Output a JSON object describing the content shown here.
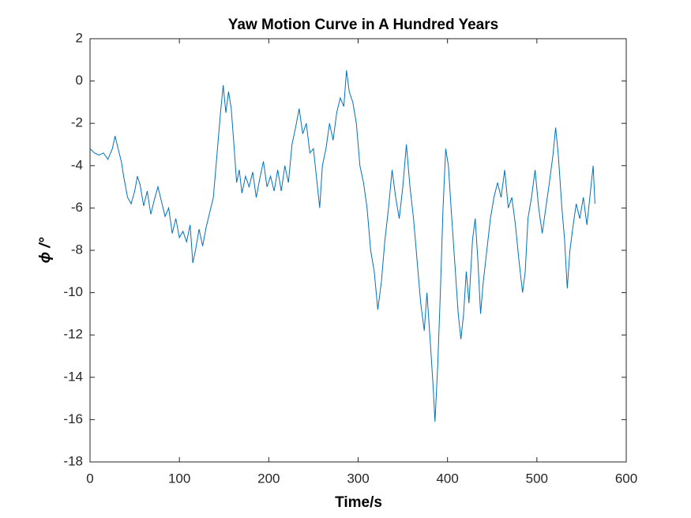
{
  "chart_data": {
    "type": "line",
    "title": "Yaw Motion Curve in A Hundred Years",
    "xlabel": "Time/s",
    "ylabel": "ϕ /°",
    "x": [
      0,
      5,
      10,
      15,
      20,
      25,
      28,
      32,
      35,
      38,
      42,
      46,
      50,
      53,
      56,
      60,
      64,
      68,
      72,
      76,
      80,
      84,
      88,
      92,
      96,
      100,
      104,
      108,
      112,
      115,
      118,
      122,
      126,
      130,
      134,
      138,
      142,
      146,
      149,
      152,
      155,
      158,
      161,
      164,
      167,
      170,
      174,
      178,
      182,
      186,
      190,
      194,
      198,
      202,
      206,
      210,
      214,
      218,
      222,
      226,
      230,
      234,
      238,
      242,
      246,
      250,
      254,
      257,
      260,
      264,
      268,
      272,
      276,
      280,
      284,
      287,
      290,
      294,
      298,
      302,
      306,
      310,
      314,
      318,
      322,
      326,
      330,
      334,
      338,
      342,
      346,
      350,
      354,
      358,
      362,
      366,
      370,
      374,
      377,
      381,
      384,
      386,
      389,
      392,
      395,
      398,
      401,
      404,
      408,
      412,
      415,
      418,
      421,
      424,
      428,
      431,
      434,
      437,
      440,
      444,
      448,
      452,
      456,
      460,
      464,
      468,
      472,
      476,
      480,
      484,
      487,
      490,
      494,
      498,
      502,
      506,
      510,
      514,
      518,
      521,
      524,
      528,
      531,
      534,
      537,
      540,
      544,
      548,
      552,
      556,
      560,
      563,
      565
    ],
    "series": [
      {
        "name": "yaw",
        "color": "#0072bd",
        "values": [
          -3.2,
          -3.4,
          -3.5,
          -3.4,
          -3.7,
          -3.2,
          -2.6,
          -3.3,
          -3.8,
          -4.6,
          -5.5,
          -5.8,
          -5.2,
          -4.5,
          -4.9,
          -5.9,
          -5.2,
          -6.3,
          -5.6,
          -5.0,
          -5.7,
          -6.4,
          -6.0,
          -7.2,
          -6.5,
          -7.4,
          -7.1,
          -7.6,
          -6.8,
          -8.6,
          -8.0,
          -7.0,
          -7.8,
          -6.9,
          -6.2,
          -5.5,
          -3.5,
          -1.5,
          -0.2,
          -1.5,
          -0.5,
          -1.3,
          -3.0,
          -4.8,
          -4.2,
          -5.3,
          -4.5,
          -5.0,
          -4.3,
          -5.5,
          -4.6,
          -3.8,
          -5.0,
          -4.5,
          -5.2,
          -4.2,
          -5.2,
          -4.0,
          -4.8,
          -3.0,
          -2.2,
          -1.3,
          -2.5,
          -2.0,
          -3.4,
          -3.2,
          -4.8,
          -6.0,
          -4.0,
          -3.2,
          -2.0,
          -2.8,
          -1.5,
          -0.8,
          -1.2,
          0.5,
          -0.5,
          -1.0,
          -2.0,
          -4.0,
          -4.8,
          -6.0,
          -8.0,
          -9.0,
          -10.8,
          -9.5,
          -7.5,
          -6.0,
          -4.2,
          -5.5,
          -6.5,
          -5.0,
          -3.0,
          -5.0,
          -6.5,
          -8.5,
          -10.5,
          -11.8,
          -10.0,
          -12.5,
          -14.5,
          -16.1,
          -13.5,
          -10.0,
          -6.0,
          -3.2,
          -4.0,
          -6.0,
          -8.5,
          -11.0,
          -12.2,
          -11.0,
          -9.0,
          -10.5,
          -7.5,
          -6.5,
          -8.5,
          -11.0,
          -9.5,
          -8.0,
          -6.5,
          -5.5,
          -4.8,
          -5.5,
          -4.2,
          -6.0,
          -5.5,
          -6.8,
          -8.5,
          -10.0,
          -9.0,
          -6.5,
          -5.5,
          -4.2,
          -6.0,
          -7.2,
          -6.0,
          -4.8,
          -3.5,
          -2.2,
          -3.5,
          -6.0,
          -7.5,
          -9.8,
          -8.0,
          -7.0,
          -5.8,
          -6.5,
          -5.5,
          -6.8,
          -5.2,
          -4.0,
          -5.8
        ]
      }
    ],
    "xlim": [
      0,
      600
    ],
    "xticks": [
      0,
      100,
      200,
      300,
      400,
      500,
      600
    ],
    "ylim": [
      -18,
      2
    ],
    "yticks": [
      -18,
      -16,
      -14,
      -12,
      -10,
      -8,
      -6,
      -4,
      -2,
      0,
      2
    ],
    "grid": false
  }
}
